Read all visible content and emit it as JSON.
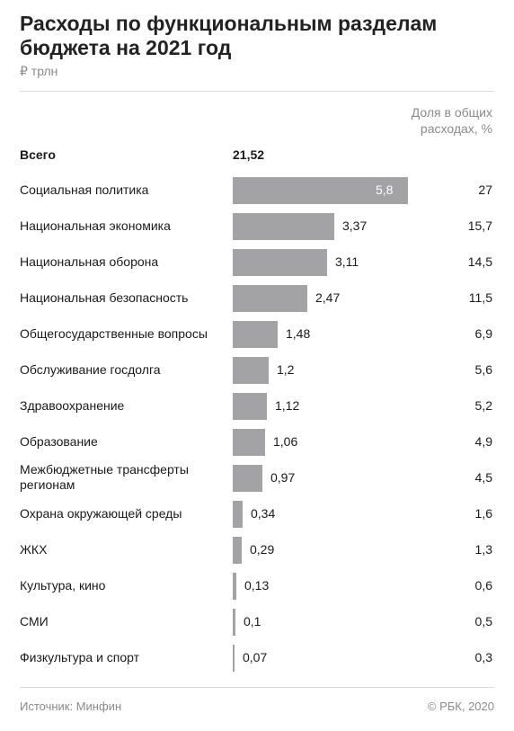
{
  "header": {
    "title": "Расходы по функциональным разделам бюджета на 2021 год",
    "unit": "₽ трлн",
    "share_header": "Доля в общих расходах, %"
  },
  "chart_data": {
    "type": "bar",
    "orientation": "horizontal",
    "title": "Расходы по функциональным разделам бюджета на 2021 год",
    "unit": "₽ трлн",
    "total": {
      "label": "Всего",
      "value": "21,52"
    },
    "categories": [
      "Социальная политика",
      "Национальная экономика",
      "Национальная оборона",
      "Национальная безопасность",
      "Общегосударственные вопросы",
      "Обслуживание госдолга",
      "Здравоохранение",
      "Образование",
      "Межбюджетные трансферты регионам",
      "Охрана окружающей среды",
      "ЖКХ",
      "Культура, кино",
      "СМИ",
      "Физкультура и спорт"
    ],
    "values": [
      5.8,
      3.37,
      3.11,
      2.47,
      1.48,
      1.2,
      1.12,
      1.06,
      0.97,
      0.34,
      0.29,
      0.13,
      0.1,
      0.07
    ],
    "value_labels": [
      "5,8",
      "3,37",
      "3,11",
      "2,47",
      "1,48",
      "1,2",
      "1,12",
      "1,06",
      "0,97",
      "0,34",
      "0,29",
      "0,13",
      "0,1",
      "0,07"
    ],
    "share_labels": [
      "27",
      "15,7",
      "14,5",
      "11,5",
      "6,9",
      "5,6",
      "5,2",
      "4,9",
      "4,5",
      "1,6",
      "1,3",
      "0,6",
      "0,5",
      "0,3"
    ],
    "bar_color": "#a3a3a5",
    "xlim": [
      0,
      5.8
    ],
    "grid": false,
    "legend": "none"
  },
  "footer": {
    "source": "Источник: Минфин",
    "copyright": "© РБК, 2020"
  }
}
